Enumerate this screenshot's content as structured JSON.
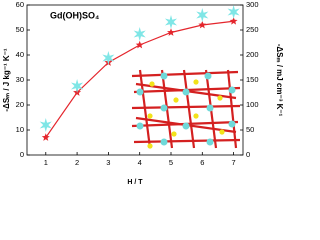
{
  "chart_data": {
    "type": "line",
    "annotation": "Gd(OH)SO₄",
    "xlabel": "H / T",
    "ylabel": "-ΔSₘ / J kg⁻¹ K⁻¹",
    "y2label": "-ΔSₘ / mJ cm⁻³ K⁻¹",
    "x": [
      1,
      2,
      3,
      4,
      5,
      6,
      7
    ],
    "series": [
      {
        "color": "#e4262d",
        "marker": "star",
        "values": [
          7,
          25,
          37,
          44,
          49,
          52,
          53.5
        ]
      },
      {
        "color": "#7fe6e6",
        "marker": "asterisk",
        "axis": "y2",
        "values": [
          60,
          138,
          194,
          242,
          266,
          280,
          286
        ]
      }
    ],
    "xlim": [
      0.4,
      7.3
    ],
    "xticks": [
      1,
      2,
      3,
      4,
      5,
      6,
      7
    ],
    "ylim": [
      0,
      60
    ],
    "yticks": [
      0,
      10,
      20,
      30,
      40,
      50,
      60
    ],
    "y2lim": [
      0,
      300
    ],
    "y2ticks": [
      0,
      50,
      100,
      150,
      200,
      250,
      300
    ]
  }
}
